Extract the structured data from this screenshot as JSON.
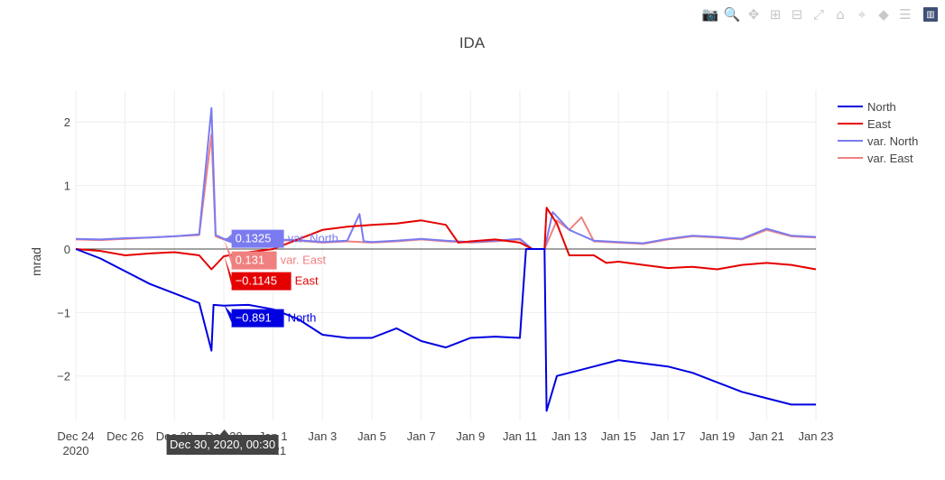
{
  "modebar": {
    "buttons": [
      {
        "name": "camera-icon",
        "glyph": "📷"
      },
      {
        "name": "zoom-icon",
        "glyph": "🔍"
      },
      {
        "name": "pan-icon",
        "glyph": "✥"
      },
      {
        "name": "zoom-in-icon",
        "glyph": "⊞"
      },
      {
        "name": "zoom-out-icon",
        "glyph": "⊟"
      },
      {
        "name": "autoscale-icon",
        "glyph": "⤢"
      },
      {
        "name": "reset-axes-icon",
        "glyph": "⌂"
      },
      {
        "name": "spike-lines-icon",
        "glyph": "⌖"
      },
      {
        "name": "hover-closest-icon",
        "glyph": "◆"
      },
      {
        "name": "hover-compare-icon",
        "glyph": "☰"
      },
      {
        "name": "plotly-logo-icon",
        "glyph": "▥"
      }
    ]
  },
  "chart_data": {
    "type": "line",
    "title": "IDA",
    "xlabel": "",
    "ylabel": "mrad",
    "xlim": [
      "2020-12-24",
      "2021-01-23"
    ],
    "ylim": [
      -2.7,
      2.5
    ],
    "grid": true,
    "legend_position": "top-right",
    "x_ticks": [
      {
        "date": "2020-12-24",
        "label": "Dec 24",
        "sub": "2020"
      },
      {
        "date": "2020-12-26",
        "label": "Dec 26",
        "sub": ""
      },
      {
        "date": "2020-12-28",
        "label": "Dec 28",
        "sub": ""
      },
      {
        "date": "2020-12-30",
        "label": "Dec 30",
        "sub": ""
      },
      {
        "date": "2021-01-01",
        "label": "Jan 1",
        "sub": "2021"
      },
      {
        "date": "2021-01-03",
        "label": "Jan 3",
        "sub": ""
      },
      {
        "date": "2021-01-05",
        "label": "Jan 5",
        "sub": ""
      },
      {
        "date": "2021-01-07",
        "label": "Jan 7",
        "sub": ""
      },
      {
        "date": "2021-01-09",
        "label": "Jan 9",
        "sub": ""
      },
      {
        "date": "2021-01-11",
        "label": "Jan 11",
        "sub": ""
      },
      {
        "date": "2021-01-13",
        "label": "Jan 13",
        "sub": ""
      },
      {
        "date": "2021-01-15",
        "label": "Jan 15",
        "sub": ""
      },
      {
        "date": "2021-01-17",
        "label": "Jan 17",
        "sub": ""
      },
      {
        "date": "2021-01-19",
        "label": "Jan 19",
        "sub": ""
      },
      {
        "date": "2021-01-21",
        "label": "Jan 21",
        "sub": ""
      },
      {
        "date": "2021-01-23",
        "label": "Jan 23",
        "sub": ""
      }
    ],
    "y_ticks": [
      {
        "value": 2,
        "label": "2"
      },
      {
        "value": 1,
        "label": "1"
      },
      {
        "value": 0,
        "label": "0"
      },
      {
        "value": -1,
        "label": "−1"
      },
      {
        "value": -2,
        "label": "−2"
      }
    ],
    "series": [
      {
        "name": "var. East",
        "color": "#f08080",
        "width": 2,
        "points": [
          [
            "2020-12-24",
            0.15
          ],
          [
            "2020-12-25",
            0.14
          ],
          [
            "2020-12-26",
            0.16
          ],
          [
            "2020-12-27",
            0.18
          ],
          [
            "2020-12-28",
            0.2
          ],
          [
            "2020-12-29",
            0.22
          ],
          [
            "2020-12-29 12:00",
            1.8
          ],
          [
            "2020-12-29 16:00",
            0.2
          ],
          [
            "2020-12-30",
            0.15
          ],
          [
            "2020-12-31",
            0.13
          ],
          [
            "2021-01-01",
            0.14
          ],
          [
            "2021-01-02",
            0.13
          ],
          [
            "2021-01-03",
            0.1
          ],
          [
            "2021-01-04",
            0.12
          ],
          [
            "2021-01-05",
            0.1
          ],
          [
            "2021-01-06",
            0.12
          ],
          [
            "2021-01-07",
            0.15
          ],
          [
            "2021-01-08",
            0.12
          ],
          [
            "2021-01-09",
            0.1
          ],
          [
            "2021-01-10",
            0.12
          ],
          [
            "2021-01-11",
            0.15
          ],
          [
            "2021-01-11 12:00",
            0.0
          ],
          [
            "2021-01-12",
            0.0
          ],
          [
            "2021-01-12 12:00",
            0.45
          ],
          [
            "2021-01-13",
            0.3
          ],
          [
            "2021-01-13 12:00",
            0.5
          ],
          [
            "2021-01-14",
            0.12
          ],
          [
            "2021-01-15",
            0.1
          ],
          [
            "2021-01-16",
            0.08
          ],
          [
            "2021-01-17",
            0.15
          ],
          [
            "2021-01-18",
            0.2
          ],
          [
            "2021-01-19",
            0.18
          ],
          [
            "2021-01-20",
            0.15
          ],
          [
            "2021-01-21",
            0.3
          ],
          [
            "2021-01-22",
            0.2
          ],
          [
            "2021-01-23",
            0.18
          ]
        ]
      },
      {
        "name": "var. North",
        "color": "#7b7bf0",
        "width": 2,
        "points": [
          [
            "2020-12-24",
            0.16
          ],
          [
            "2020-12-25",
            0.15
          ],
          [
            "2020-12-26",
            0.17
          ],
          [
            "2020-12-27",
            0.18
          ],
          [
            "2020-12-28",
            0.2
          ],
          [
            "2020-12-29",
            0.23
          ],
          [
            "2020-12-29 12:00",
            2.22
          ],
          [
            "2020-12-29 16:00",
            0.22
          ],
          [
            "2020-12-30",
            0.16
          ],
          [
            "2020-12-31",
            0.14
          ],
          [
            "2021-01-01",
            0.15
          ],
          [
            "2021-01-02",
            0.14
          ],
          [
            "2021-01-03",
            0.11
          ],
          [
            "2021-01-04",
            0.13
          ],
          [
            "2021-01-04 12:00",
            0.55
          ],
          [
            "2021-01-04 16:00",
            0.12
          ],
          [
            "2021-01-05",
            0.11
          ],
          [
            "2021-01-06",
            0.13
          ],
          [
            "2021-01-07",
            0.16
          ],
          [
            "2021-01-08",
            0.13
          ],
          [
            "2021-01-09",
            0.11
          ],
          [
            "2021-01-10",
            0.13
          ],
          [
            "2021-01-11",
            0.16
          ],
          [
            "2021-01-11 12:00",
            0.0
          ],
          [
            "2021-01-12",
            0.0
          ],
          [
            "2021-01-12 08:00",
            0.58
          ],
          [
            "2021-01-13",
            0.3
          ],
          [
            "2021-01-14",
            0.13
          ],
          [
            "2021-01-15",
            0.11
          ],
          [
            "2021-01-16",
            0.09
          ],
          [
            "2021-01-17",
            0.16
          ],
          [
            "2021-01-18",
            0.21
          ],
          [
            "2021-01-19",
            0.19
          ],
          [
            "2021-01-20",
            0.16
          ],
          [
            "2021-01-21",
            0.32
          ],
          [
            "2021-01-22",
            0.21
          ],
          [
            "2021-01-23",
            0.19
          ]
        ]
      },
      {
        "name": "East",
        "color": "#e50000",
        "width": 2,
        "points": [
          [
            "2020-12-24",
            0.0
          ],
          [
            "2020-12-25",
            -0.03
          ],
          [
            "2020-12-26",
            -0.1
          ],
          [
            "2020-12-27",
            -0.07
          ],
          [
            "2020-12-28",
            -0.05
          ],
          [
            "2020-12-29",
            -0.1
          ],
          [
            "2020-12-29 12:00",
            -0.32
          ],
          [
            "2020-12-30",
            -0.1145
          ],
          [
            "2020-12-31",
            -0.05
          ],
          [
            "2021-01-01",
            0.0
          ],
          [
            "2021-01-02",
            0.15
          ],
          [
            "2021-01-03",
            0.3
          ],
          [
            "2021-01-04",
            0.35
          ],
          [
            "2021-01-05",
            0.38
          ],
          [
            "2021-01-06",
            0.4
          ],
          [
            "2021-01-07",
            0.45
          ],
          [
            "2021-01-08",
            0.38
          ],
          [
            "2021-01-08 12:00",
            0.1
          ],
          [
            "2021-01-09",
            0.12
          ],
          [
            "2021-01-10",
            0.15
          ],
          [
            "2021-01-11",
            0.1
          ],
          [
            "2021-01-11 12:00",
            0.0
          ],
          [
            "2021-01-12",
            0.0
          ],
          [
            "2021-01-12 02:00",
            0.65
          ],
          [
            "2021-01-12 12:00",
            0.4
          ],
          [
            "2021-01-13",
            -0.1
          ],
          [
            "2021-01-14",
            -0.1
          ],
          [
            "2021-01-14 12:00",
            -0.22
          ],
          [
            "2021-01-15",
            -0.2
          ],
          [
            "2021-01-16",
            -0.25
          ],
          [
            "2021-01-17",
            -0.3
          ],
          [
            "2021-01-18",
            -0.28
          ],
          [
            "2021-01-19",
            -0.32
          ],
          [
            "2021-01-20",
            -0.25
          ],
          [
            "2021-01-21",
            -0.22
          ],
          [
            "2021-01-22",
            -0.25
          ],
          [
            "2021-01-23",
            -0.32
          ]
        ]
      },
      {
        "name": "North",
        "color": "#0000e0",
        "width": 2,
        "points": [
          [
            "2020-12-24",
            0.0
          ],
          [
            "2020-12-25",
            -0.15
          ],
          [
            "2020-12-26",
            -0.35
          ],
          [
            "2020-12-27",
            -0.55
          ],
          [
            "2020-12-28",
            -0.7
          ],
          [
            "2020-12-29",
            -0.85
          ],
          [
            "2020-12-29 12:00",
            -1.6
          ],
          [
            "2020-12-29 14:00",
            -0.88
          ],
          [
            "2020-12-30",
            -0.891
          ],
          [
            "2020-12-31",
            -0.88
          ],
          [
            "2021-01-01",
            -0.95
          ],
          [
            "2021-01-02",
            -1.1
          ],
          [
            "2021-01-03",
            -1.35
          ],
          [
            "2021-01-04",
            -1.4
          ],
          [
            "2021-01-05",
            -1.4
          ],
          [
            "2021-01-06",
            -1.25
          ],
          [
            "2021-01-07",
            -1.45
          ],
          [
            "2021-01-08",
            -1.55
          ],
          [
            "2021-01-09",
            -1.4
          ],
          [
            "2021-01-10",
            -1.38
          ],
          [
            "2021-01-11",
            -1.4
          ],
          [
            "2021-01-11 06:00",
            0.0
          ],
          [
            "2021-01-12",
            0.0
          ],
          [
            "2021-01-12 02:00",
            -2.55
          ],
          [
            "2021-01-12 12:00",
            -2.0
          ],
          [
            "2021-01-13",
            -1.95
          ],
          [
            "2021-01-14",
            -1.85
          ],
          [
            "2021-01-15",
            -1.75
          ],
          [
            "2021-01-16",
            -1.8
          ],
          [
            "2021-01-17",
            -1.85
          ],
          [
            "2021-01-18",
            -1.95
          ],
          [
            "2021-01-19",
            -2.1
          ],
          [
            "2021-01-20",
            -2.25
          ],
          [
            "2021-01-21",
            -2.35
          ],
          [
            "2021-01-22",
            -2.45
          ],
          [
            "2021-01-23",
            -2.45
          ]
        ]
      }
    ],
    "legend": [
      {
        "name": "North",
        "color": "#0000e0"
      },
      {
        "name": "East",
        "color": "#e50000"
      },
      {
        "name": "var. North",
        "color": "#7b7bf0"
      },
      {
        "name": "var. East",
        "color": "#f08080"
      }
    ],
    "hover": {
      "date": "2020-12-30 00:30",
      "x_label": "Dec 30, 2020, 00:30",
      "labels": [
        {
          "series": "var. North",
          "value": 0.1325,
          "text": "0.1325",
          "color": "#7b7bf0"
        },
        {
          "series": "var. East",
          "value": 0.131,
          "text": "0.131",
          "color": "#f08080"
        },
        {
          "series": "East",
          "value": -0.1145,
          "text": "−0.1145",
          "color": "#e50000"
        },
        {
          "series": "North",
          "value": -0.891,
          "text": "−0.891",
          "color": "#0000e0"
        }
      ]
    }
  }
}
